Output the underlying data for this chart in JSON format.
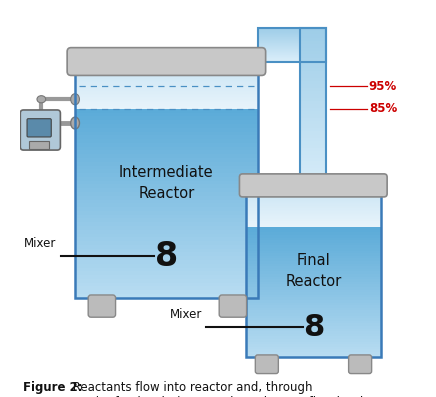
{
  "bg_color": "#ffffff",
  "figure_caption_bold": "Figure 2:",
  "figure_caption_normal": " Reactants flow into reactor and, through\ngravity feed, solution travels to the overflow kettle.",
  "tank1_label": "Intermediate\nReactor",
  "tank2_label": "Final\nReactor",
  "mixer_label": "Mixer",
  "mixer_symbol": "8",
  "pct_95": "95%",
  "pct_85": "85%",
  "pct_color": "#cc0000",
  "tank_fill_light": "#cce8f5",
  "tank_fill_mid": "#7ec8e8",
  "tank_fill_dark": "#4a9cc8",
  "tank_border": "#3a7ab8",
  "pipe_color": "#a8d8f0",
  "pipe_border": "#4a90c4",
  "cap_color": "#c8c8c8",
  "cap_border": "#888888",
  "foot_color": "#bbbbbb",
  "foot_border": "#888888"
}
